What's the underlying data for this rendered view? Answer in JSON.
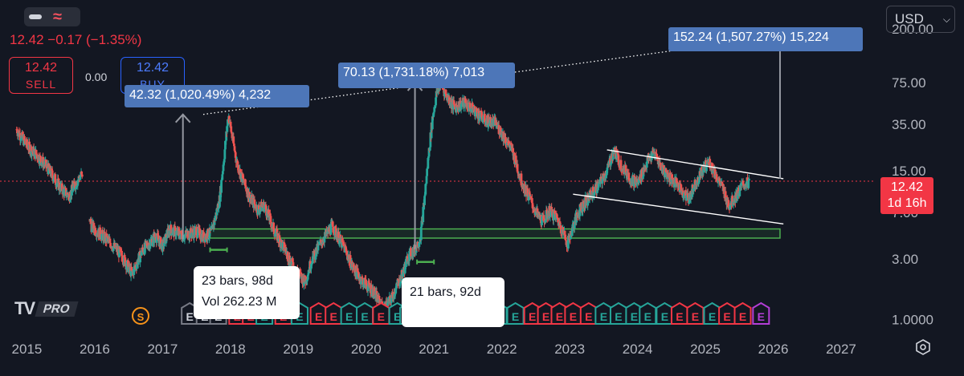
{
  "header": {
    "price_change": "12.42 −0.17 (−1.35%)",
    "sell_price": "12.42",
    "sell_label": "SELL",
    "spread": "0.00",
    "buy_price": "12.42",
    "buy_label": "BUY",
    "currency": "USD"
  },
  "annotations": {
    "measure_1": "42.32 (1,020.49%) 4,232",
    "measure_2": "70.13 (1,731.18%) 7,013",
    "measure_3": "152.24 (1,507.27%) 15,224",
    "bars_1_line1": "23 bars, 98d",
    "bars_1_line2": "Vol 262.23 M",
    "bars_2_line1": "21 bars, 92d",
    "bars_2_line2": ""
  },
  "price_tag": {
    "price": "12.42",
    "countdown": "1d 16h"
  },
  "brand": {
    "logo_text": "PRO",
    "s_badge": "S"
  },
  "colors": {
    "background": "#131722",
    "up": "#26a69a",
    "down": "#ef5350",
    "label_blue": "#4d76b8",
    "zone_green": "#4caf50",
    "price_red": "#f23645"
  },
  "chart_data": {
    "type": "candlestick",
    "y_scale": "log",
    "ylim": [
      0.75,
      260
    ],
    "y_ticks": [
      {
        "value": 200,
        "label": "200.00"
      },
      {
        "value": 75,
        "label": "75.00"
      },
      {
        "value": 35,
        "label": "35.00"
      },
      {
        "value": 15,
        "label": "15.00"
      },
      {
        "value": 7,
        "label": "7.00"
      },
      {
        "value": 3,
        "label": "3.00"
      },
      {
        "value": 1,
        "label": "1.0000"
      }
    ],
    "x_range": [
      2014.9,
      2027.45
    ],
    "x_ticks": [
      "2015",
      "2016",
      "2017",
      "2018",
      "2019",
      "2020",
      "2021",
      "2022",
      "2023",
      "2024",
      "2025",
      "2026",
      "2027"
    ],
    "current_price": 12.42,
    "price_path": [
      [
        2014.85,
        32
      ],
      [
        2015.0,
        24
      ],
      [
        2015.15,
        20
      ],
      [
        2015.3,
        16
      ],
      [
        2015.5,
        11
      ],
      [
        2015.62,
        9.5
      ],
      [
        2015.72,
        12
      ],
      [
        2015.8,
        14
      ],
      [
        2015.95,
        5.5
      ],
      [
        2016.2,
        4.2
      ],
      [
        2016.4,
        3.2
      ],
      [
        2016.55,
        2.3
      ],
      [
        2016.7,
        3.5
      ],
      [
        2016.9,
        4.6
      ],
      [
        2017.0,
        3.8
      ],
      [
        2017.1,
        5.2
      ],
      [
        2017.3,
        4.6
      ],
      [
        2017.5,
        5.0
      ],
      [
        2017.6,
        4.5
      ],
      [
        2017.72,
        4.9
      ],
      [
        2017.78,
        6.5
      ],
      [
        2017.84,
        9.0
      ],
      [
        2017.9,
        18
      ],
      [
        2017.97,
        42
      ],
      [
        2018.03,
        27
      ],
      [
        2018.1,
        17
      ],
      [
        2018.2,
        12
      ],
      [
        2018.3,
        9.0
      ],
      [
        2018.4,
        7.5
      ],
      [
        2018.5,
        8.0
      ],
      [
        2018.65,
        5.0
      ],
      [
        2018.8,
        3.6
      ],
      [
        2018.95,
        2.5
      ],
      [
        2019.1,
        2.0
      ],
      [
        2019.2,
        3.0
      ],
      [
        2019.35,
        4.2
      ],
      [
        2019.5,
        5.5
      ],
      [
        2019.6,
        4.4
      ],
      [
        2019.7,
        3.5
      ],
      [
        2019.8,
        2.6
      ],
      [
        2019.95,
        2.0
      ],
      [
        2020.1,
        1.7
      ],
      [
        2020.25,
        1.2
      ],
      [
        2020.35,
        1.4
      ],
      [
        2020.45,
        1.8
      ],
      [
        2020.55,
        2.4
      ],
      [
        2020.62,
        3.2
      ],
      [
        2020.72,
        3.6
      ],
      [
        2020.8,
        4.5
      ],
      [
        2020.86,
        9
      ],
      [
        2020.92,
        20
      ],
      [
        2020.98,
        40
      ],
      [
        2021.04,
        62
      ],
      [
        2021.1,
        75
      ],
      [
        2021.18,
        60
      ],
      [
        2021.3,
        48
      ],
      [
        2021.45,
        52
      ],
      [
        2021.6,
        45
      ],
      [
        2021.75,
        38
      ],
      [
        2021.9,
        36
      ],
      [
        2022.0,
        30
      ],
      [
        2022.15,
        22
      ],
      [
        2022.3,
        12
      ],
      [
        2022.4,
        9.5
      ],
      [
        2022.5,
        7.0
      ],
      [
        2022.6,
        6.0
      ],
      [
        2022.7,
        7.2
      ],
      [
        2022.8,
        6.5
      ],
      [
        2022.9,
        5.0
      ],
      [
        2022.97,
        4.0
      ],
      [
        2023.05,
        5.5
      ],
      [
        2023.15,
        7.5
      ],
      [
        2023.3,
        9.5
      ],
      [
        2023.45,
        12
      ],
      [
        2023.55,
        15
      ],
      [
        2023.65,
        22
      ],
      [
        2023.75,
        17
      ],
      [
        2023.9,
        13
      ],
      [
        2024.0,
        12
      ],
      [
        2024.15,
        18
      ],
      [
        2024.25,
        21
      ],
      [
        2024.35,
        16
      ],
      [
        2024.5,
        13
      ],
      [
        2024.6,
        11.5
      ],
      [
        2024.75,
        9
      ],
      [
        2024.85,
        12
      ],
      [
        2024.95,
        15
      ],
      [
        2025.05,
        18
      ],
      [
        2025.15,
        14
      ],
      [
        2025.25,
        11
      ],
      [
        2025.35,
        8
      ],
      [
        2025.45,
        9.5
      ],
      [
        2025.55,
        11.5
      ],
      [
        2025.65,
        12.42
      ]
    ],
    "support_zone": {
      "x": [
        2017.7,
        2026.1
      ],
      "y": [
        4.4,
        5.2
      ]
    },
    "trendlines": [
      {
        "style": "dotted",
        "points": [
          [
            2017.6,
            42
          ],
          [
            2026.9,
            200
          ]
        ]
      },
      {
        "style": "solid",
        "points": [
          [
            2023.55,
            22
          ],
          [
            2026.15,
            13
          ]
        ]
      },
      {
        "style": "solid",
        "points": [
          [
            2023.05,
            9.8
          ],
          [
            2026.15,
            5.7
          ]
        ]
      }
    ],
    "measure_arrows": [
      {
        "x": 2017.3,
        "from": 4.3,
        "to": 42
      },
      {
        "x": 2020.72,
        "from": 3.6,
        "to": 75
      },
      {
        "x": 2026.1,
        "from": 13,
        "to": 190
      }
    ],
    "bar_ranges": [
      {
        "x": [
          2017.7,
          2017.95
        ],
        "y": 3.55
      },
      {
        "x": [
          2020.75,
          2021.0
        ],
        "y": 2.85
      }
    ],
    "events": [
      {
        "x": 2017.4,
        "kind": "grey"
      },
      {
        "x": 2017.62,
        "kind": "grey"
      },
      {
        "x": 2017.82,
        "kind": "grey"
      },
      {
        "x": 2018.1,
        "kind": "red"
      },
      {
        "x": 2018.3,
        "kind": "red"
      },
      {
        "x": 2018.5,
        "kind": "green"
      },
      {
        "x": 2018.78,
        "kind": "red"
      },
      {
        "x": 2019.02,
        "kind": "green"
      },
      {
        "x": 2019.3,
        "kind": "red"
      },
      {
        "x": 2019.52,
        "kind": "red"
      },
      {
        "x": 2019.75,
        "kind": "green"
      },
      {
        "x": 2019.98,
        "kind": "green"
      },
      {
        "x": 2020.22,
        "kind": "red"
      },
      {
        "x": 2020.46,
        "kind": "green"
      },
      {
        "x": 2020.62,
        "kind": "green"
      },
      {
        "x": 2020.9,
        "kind": "green"
      },
      {
        "x": 2021.1,
        "kind": "green"
      },
      {
        "x": 2021.35,
        "kind": "red"
      },
      {
        "x": 2021.55,
        "kind": "red"
      },
      {
        "x": 2021.75,
        "kind": "red"
      },
      {
        "x": 2021.95,
        "kind": "green"
      },
      {
        "x": 2022.2,
        "kind": "green"
      },
      {
        "x": 2022.45,
        "kind": "red"
      },
      {
        "x": 2022.65,
        "kind": "red"
      },
      {
        "x": 2022.85,
        "kind": "red"
      },
      {
        "x": 2023.05,
        "kind": "red"
      },
      {
        "x": 2023.28,
        "kind": "red"
      },
      {
        "x": 2023.5,
        "kind": "green"
      },
      {
        "x": 2023.72,
        "kind": "green"
      },
      {
        "x": 2023.95,
        "kind": "green"
      },
      {
        "x": 2024.15,
        "kind": "green"
      },
      {
        "x": 2024.4,
        "kind": "green"
      },
      {
        "x": 2024.62,
        "kind": "red"
      },
      {
        "x": 2024.85,
        "kind": "red"
      },
      {
        "x": 2025.1,
        "kind": "green"
      },
      {
        "x": 2025.32,
        "kind": "red"
      },
      {
        "x": 2025.55,
        "kind": "red"
      },
      {
        "x": 2025.82,
        "kind": "purple"
      }
    ]
  }
}
